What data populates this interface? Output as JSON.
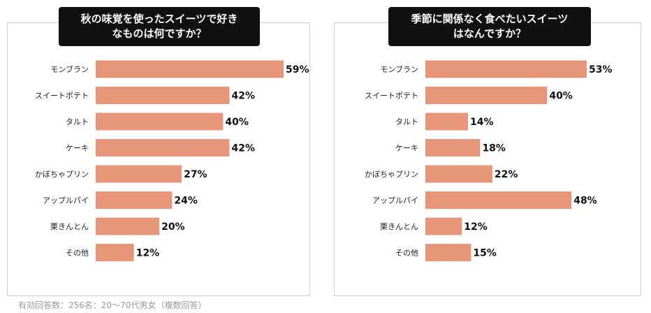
{
  "colors": {
    "bar": "#e8967a",
    "title_bg": "#111111",
    "title_text": "#ffffff",
    "frame": "#cfcfcf"
  },
  "footnote": "有効回答数：256名：20〜70代男女（複数回答）",
  "chart_data": [
    {
      "type": "bar",
      "orientation": "horizontal",
      "title_lines": [
        "秋の味覚を使ったスイーツで好き",
        "なものは何ですか？"
      ],
      "categories": [
        "モンブラン",
        "スイートポテト",
        "タルト",
        "ケーキ",
        "かぼちゃプリン",
        "アップルパイ",
        "栗きんとん",
        "その他"
      ],
      "values": [
        59,
        42,
        40,
        42,
        27,
        24,
        20,
        12
      ],
      "value_labels": [
        "59%",
        "42%",
        "40%",
        "42%",
        "27%",
        "24%",
        "20%",
        "12%"
      ],
      "unit": "%",
      "xlim": [
        0,
        59
      ]
    },
    {
      "type": "bar",
      "orientation": "horizontal",
      "title_lines": [
        "季節に関係なく食べたいスイーツ",
        "はなんですか？"
      ],
      "categories": [
        "モンブラン",
        "スイートポテト",
        "タルト",
        "ケーキ",
        "かぼちゃプリン",
        "アップルパイ",
        "栗きんとん",
        "その他"
      ],
      "values": [
        53,
        40,
        14,
        18,
        22,
        48,
        12,
        15
      ],
      "value_labels": [
        "53%",
        "40%",
        "14%",
        "18%",
        "22%",
        "48%",
        "12%",
        "15%"
      ],
      "unit": "%",
      "xlim": [
        0,
        53
      ]
    }
  ]
}
